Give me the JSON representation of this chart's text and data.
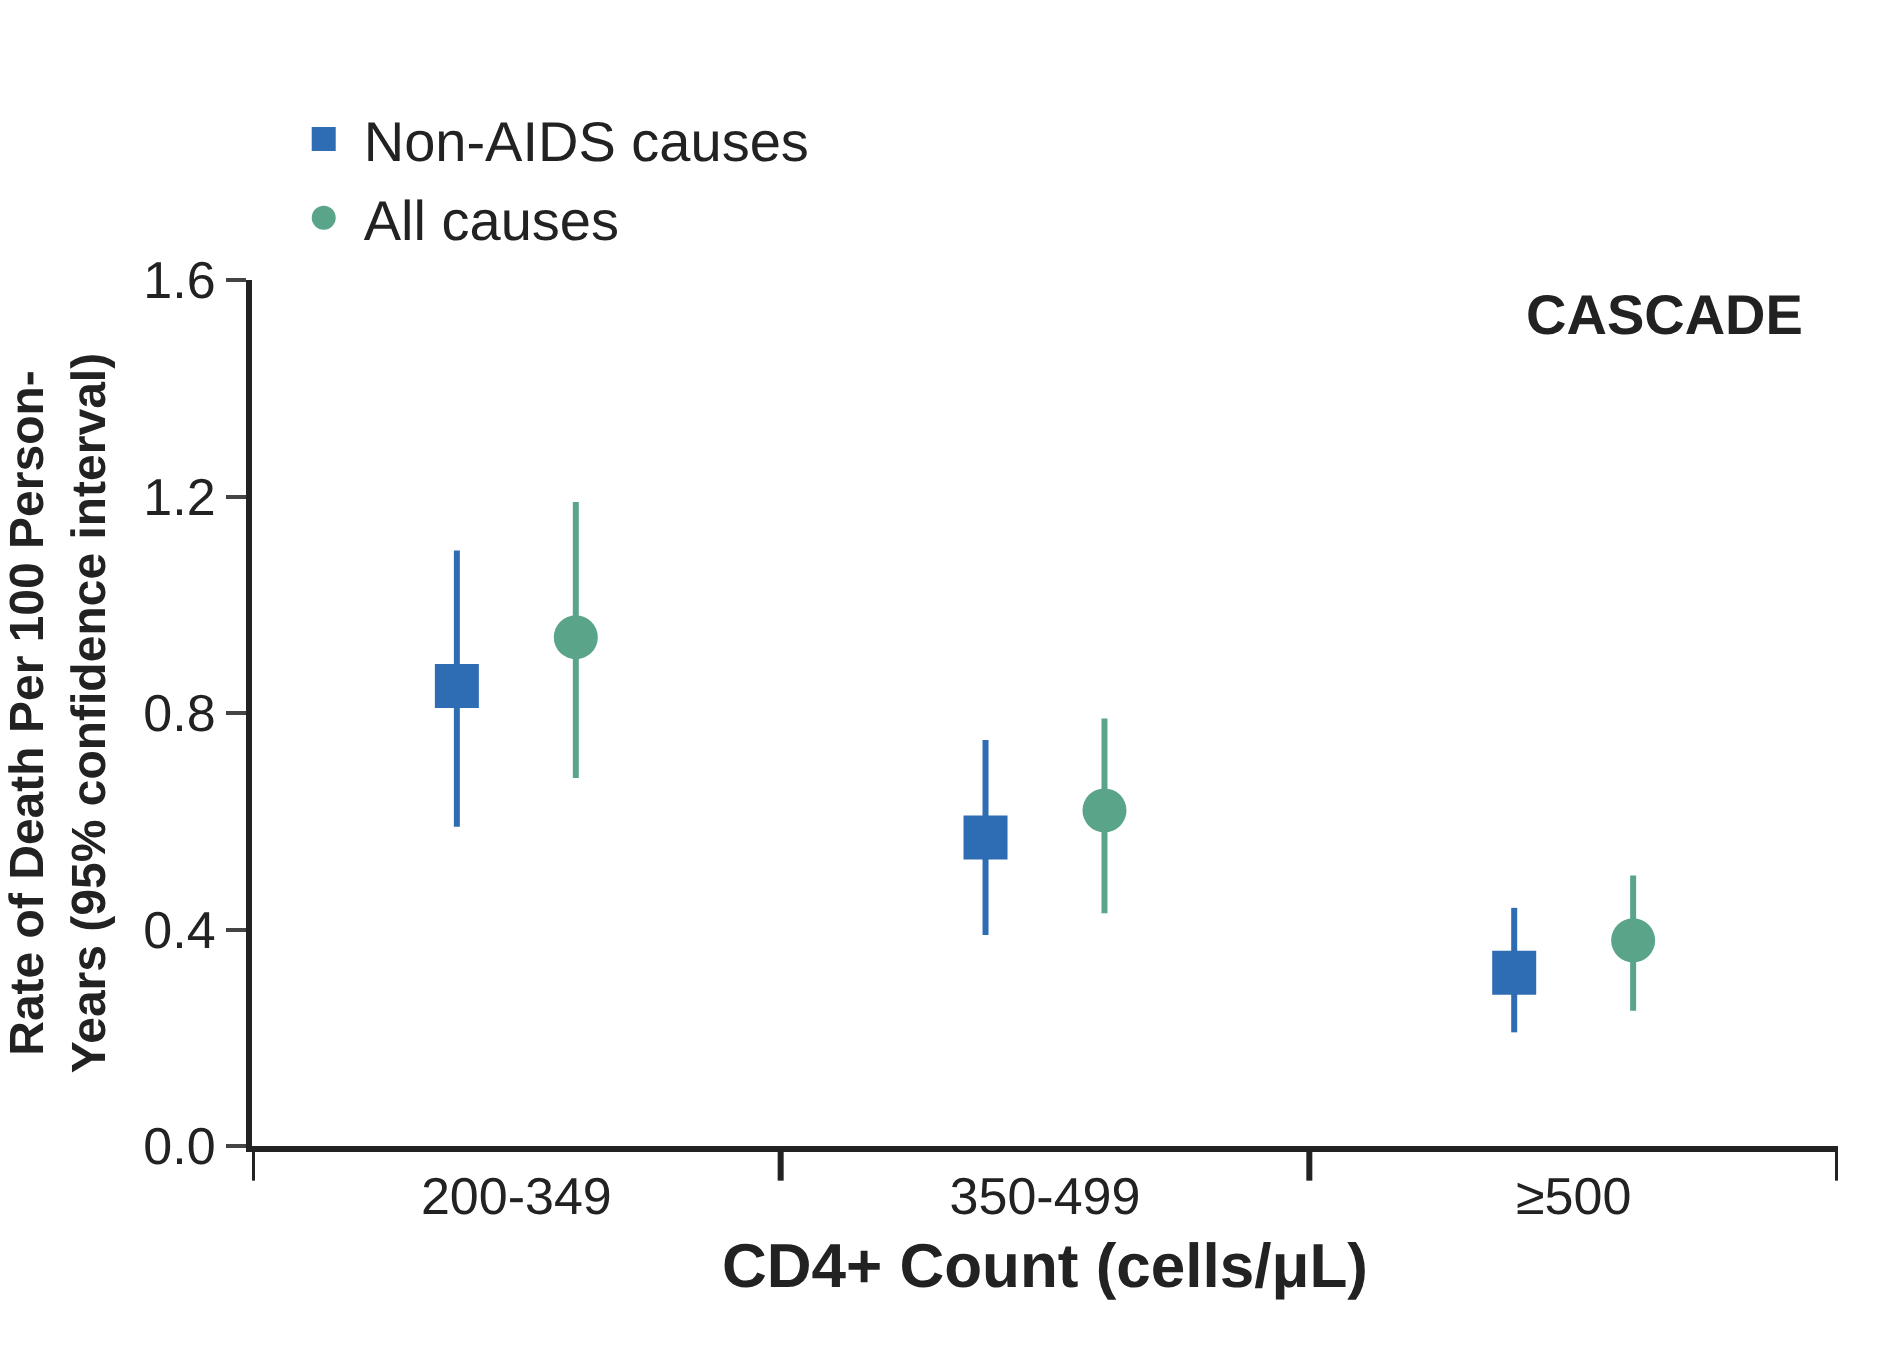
{
  "chart_data": {
    "type": "scatter",
    "xlabel": "CD4+ Count (cells/μL)",
    "ylabel": "Rate of Death Per 100 Person-\nYears (95% confidence interval)",
    "categories": [
      "200-349",
      "350-499",
      "≥500"
    ],
    "series": [
      {
        "name": "Non-AIDS causes",
        "color": "#2e6db4",
        "marker": "square",
        "values": [
          0.85,
          0.57,
          0.32
        ],
        "errors": [
          [
            0.59,
            1.1
          ],
          [
            0.39,
            0.75
          ],
          [
            0.21,
            0.44
          ]
        ]
      },
      {
        "name": "All causes",
        "color": "#5aa58a",
        "marker": "circle",
        "values": [
          0.94,
          0.62,
          0.38
        ],
        "errors": [
          [
            0.68,
            1.19
          ],
          [
            0.43,
            0.79
          ],
          [
            0.25,
            0.5
          ]
        ]
      }
    ],
    "ylim": [
      0,
      1.6
    ],
    "yticks": [
      {
        "value": 0,
        "label": "0.0"
      },
      {
        "value": 0.4,
        "label": "0.4"
      },
      {
        "value": 0.8,
        "label": "0.8"
      },
      {
        "value": 1.2,
        "label": "1.2"
      },
      {
        "value": 1.6,
        "label": "1.6"
      }
    ],
    "annotations": [
      "CASCADE"
    ],
    "legend": "top left"
  }
}
